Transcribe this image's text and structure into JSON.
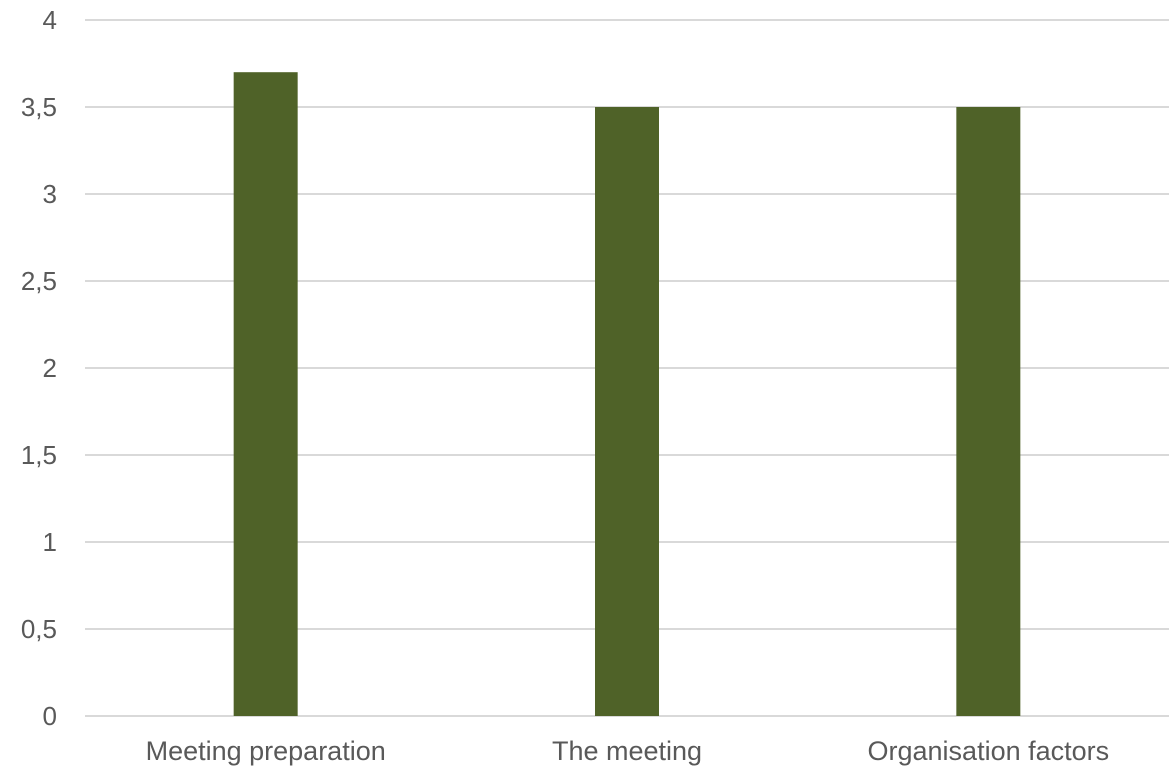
{
  "chart_data": {
    "type": "bar",
    "title": "",
    "xlabel": "",
    "ylabel": "",
    "categories": [
      "Meeting preparation",
      "The meeting",
      "Organisation factors"
    ],
    "values": [
      3.7,
      3.5,
      3.5
    ],
    "ylim": [
      0,
      4
    ],
    "yticks": [
      0,
      0.5,
      1,
      1.5,
      2,
      2.5,
      3,
      3.5,
      4
    ],
    "ytick_labels": [
      "0",
      "0,5",
      "1",
      "1,5",
      "2",
      "2,5",
      "3",
      "3,5",
      "4"
    ],
    "grid": true,
    "legend": "none",
    "bar_color": "#4f6228",
    "grid_color": "#d9d9d9",
    "label_color": "#595959"
  }
}
